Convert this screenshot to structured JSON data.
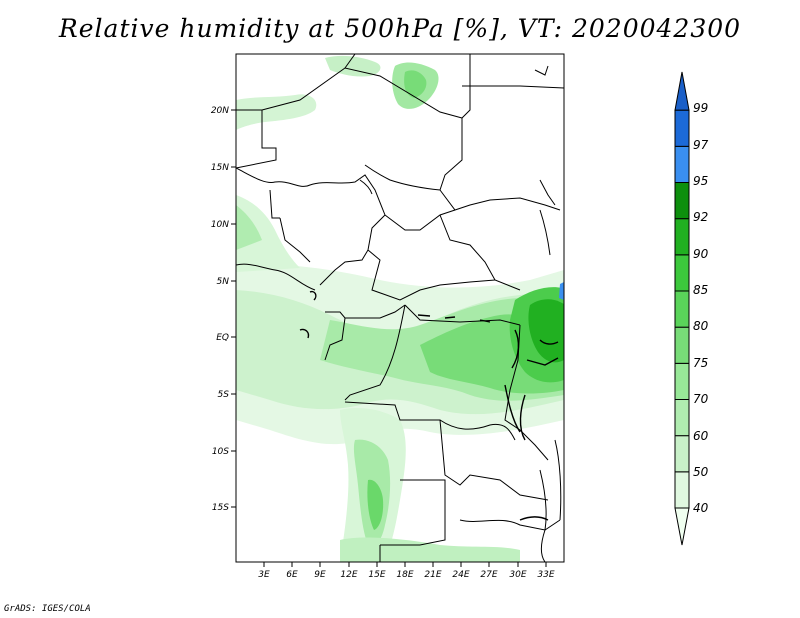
{
  "title": "Relative humidity at 500hPa [%], VT: 2020042300",
  "credit": "GrADS: IGES/COLA",
  "map": {
    "latitude_labels": [
      "20N",
      "15N",
      "10N",
      "5N",
      "EQ",
      "5S",
      "10S",
      "15S"
    ],
    "longitude_labels": [
      "3E",
      "6E",
      "9E",
      "12E",
      "15E",
      "18E",
      "21E",
      "24E",
      "27E",
      "30E",
      "33E"
    ],
    "variable": "Relative humidity",
    "level": "500hPa",
    "units": "%"
  },
  "colorbar": {
    "levels": [
      "40",
      "50",
      "60",
      "70",
      "75",
      "80",
      "85",
      "90",
      "92",
      "95",
      "97",
      "99"
    ],
    "colors": [
      "#f0fff0",
      "#e0f8e0",
      "#c8f0c8",
      "#b0ecb0",
      "#98e898",
      "#78dc78",
      "#5ad45a",
      "#3cc83c",
      "#21b021",
      "#0d8f0d",
      "#3a8ff0",
      "#1c6ad8",
      "#1a5fc8"
    ]
  }
}
